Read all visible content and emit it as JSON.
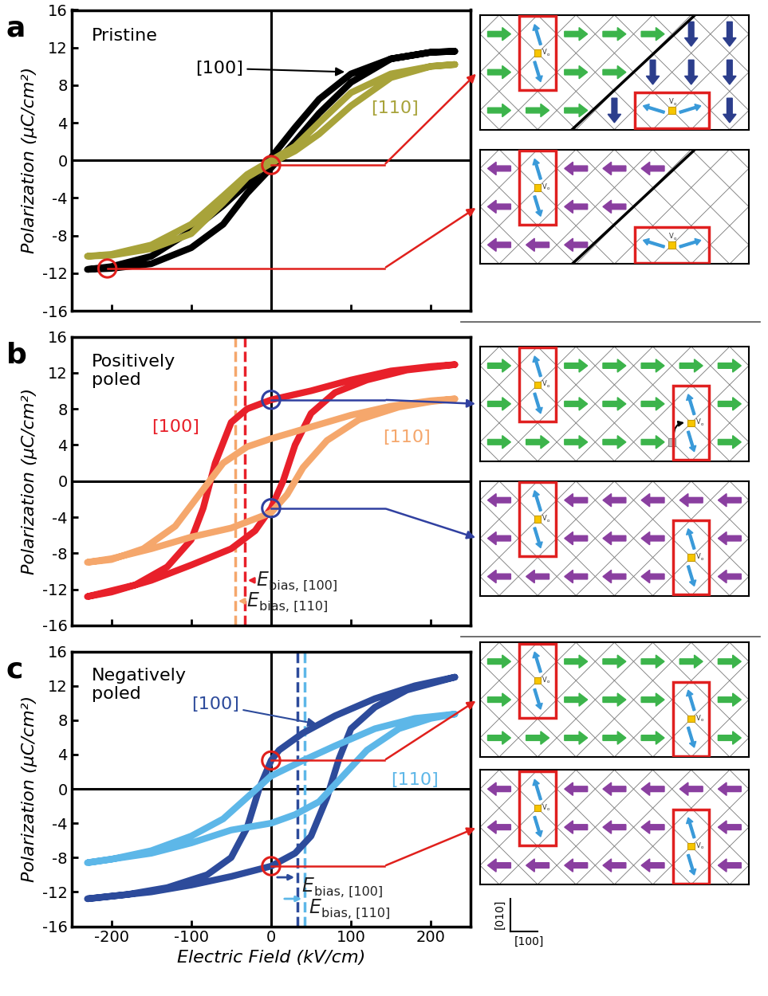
{
  "chart_data": [
    {
      "type": "line",
      "panel": "a",
      "annotation": "Pristine",
      "ylabel": "Polarization (μC/cm²)",
      "xlim": [
        -250,
        250
      ],
      "ylim": [
        -16,
        16
      ],
      "xticks": [
        -200,
        -100,
        0,
        100,
        200
      ],
      "yticks": [
        -16,
        -12,
        -8,
        -4,
        0,
        4,
        8,
        12,
        16
      ],
      "tick_labels": "y",
      "series": [
        {
          "name": "[100]",
          "color": "#000000",
          "x": [
            230,
            200,
            150,
            100,
            60,
            30,
            0,
            -30,
            -60,
            -100,
            -150,
            -200,
            -230,
            -230,
            -200,
            -150,
            -100,
            -60,
            -30,
            0,
            30,
            60,
            100,
            150,
            200,
            230
          ],
          "values": [
            11.6,
            11.5,
            10.8,
            9.2,
            6.5,
            3.5,
            0.3,
            -2.5,
            -4.8,
            -7.5,
            -10.2,
            -11.3,
            -11.6,
            -11.6,
            -11.5,
            -11.0,
            -9.3,
            -6.8,
            -3.5,
            -0.8,
            2.0,
            5.0,
            8.3,
            10.8,
            11.5,
            11.6
          ]
        },
        {
          "name": "[110]",
          "color": "#a8a33a",
          "x": [
            230,
            200,
            150,
            100,
            60,
            30,
            0,
            -30,
            -60,
            -100,
            -150,
            -200,
            -230,
            -230,
            -200,
            -150,
            -100,
            -60,
            -30,
            0,
            30,
            60,
            100,
            150,
            200,
            230
          ],
          "values": [
            10.2,
            10.0,
            9.2,
            7.2,
            4.0,
            1.5,
            0,
            -1.5,
            -3.8,
            -6.8,
            -9.0,
            -10.0,
            -10.2,
            -10.2,
            -10.1,
            -9.4,
            -7.8,
            -4.5,
            -1.8,
            -0.3,
            1.0,
            2.8,
            5.8,
            8.8,
            10.0,
            10.2
          ]
        }
      ],
      "markers": [
        {
          "x": 0,
          "y": -0.5,
          "color": "#e0201c"
        },
        {
          "x": -205,
          "y": -11.5,
          "color": "#e0201c"
        }
      ],
      "bias_lines": []
    },
    {
      "type": "line",
      "panel": "b",
      "annotation": "Positively\npoled",
      "ylabel": "Polarization (μC/cm²)",
      "xlim": [
        -250,
        250
      ],
      "ylim": [
        -16,
        16
      ],
      "xticks": [
        -200,
        -100,
        0,
        100,
        200
      ],
      "yticks": [
        -16,
        -12,
        -8,
        -4,
        0,
        4,
        8,
        12,
        16
      ],
      "tick_labels": "y",
      "series": [
        {
          "name": "[100]",
          "color": "#e8202a",
          "x": [
            230,
            200,
            150,
            100,
            50,
            0,
            -30,
            -50,
            -70,
            -85,
            -100,
            -130,
            -170,
            -230,
            -230,
            -200,
            -150,
            -100,
            -50,
            -20,
            0,
            15,
            30,
            50,
            80,
            120,
            170,
            230
          ],
          "values": [
            12.9,
            12.7,
            12.2,
            11.2,
            10.0,
            9.0,
            8.0,
            6.5,
            2.0,
            -3.0,
            -6.5,
            -9.5,
            -11.5,
            -12.8,
            -12.8,
            -12.3,
            -11.0,
            -9.3,
            -7.5,
            -5.5,
            -3.0,
            0,
            4.0,
            7.5,
            9.8,
            11.2,
            12.3,
            12.9
          ]
        },
        {
          "name": "[110]",
          "color": "#f5a76c",
          "x": [
            230,
            200,
            150,
            100,
            50,
            0,
            -30,
            -60,
            -90,
            -120,
            -160,
            -200,
            -230,
            -230,
            -200,
            -150,
            -100,
            -50,
            0,
            20,
            40,
            70,
            110,
            160,
            200,
            230
          ],
          "values": [
            9.1,
            8.9,
            8.3,
            7.3,
            6.0,
            4.7,
            3.8,
            2.0,
            -1.5,
            -5.0,
            -7.5,
            -8.7,
            -9.0,
            -9.0,
            -8.6,
            -7.5,
            -6.2,
            -5.2,
            -3.5,
            -1.5,
            1.5,
            4.5,
            6.8,
            8.2,
            8.8,
            9.1
          ]
        }
      ],
      "markers": [
        {
          "x": 0,
          "y": 9.0,
          "color": "#3040a0"
        },
        {
          "x": 0,
          "y": -3.0,
          "color": "#3040a0"
        }
      ],
      "bias_lines": [
        {
          "symbol": "E",
          "subscript": "bias, [100]",
          "value": -33,
          "color": "#e8202a"
        },
        {
          "symbol": "E",
          "subscript": "bias, [110]",
          "value": -45,
          "color": "#f5a76c"
        }
      ]
    },
    {
      "type": "line",
      "panel": "c",
      "annotation": "Negatively\npoled",
      "ylabel": "Polarization (μC/cm²)",
      "xlabel": "Electric Field (kV/cm)",
      "xlim": [
        -250,
        250
      ],
      "ylim": [
        -16,
        16
      ],
      "xticks": [
        -200,
        -100,
        0,
        100,
        200
      ],
      "yticks": [
        -16,
        -12,
        -8,
        -4,
        0,
        4,
        8,
        12,
        16
      ],
      "series": [
        {
          "name": "[100]",
          "color": "#2d4b9b",
          "x": [
            230,
            180,
            130,
            80,
            40,
            10,
            0,
            -15,
            -30,
            -50,
            -80,
            -130,
            -180,
            -230,
            -230,
            -150,
            -100,
            -50,
            0,
            30,
            50,
            70,
            85,
            100,
            130,
            170,
            230
          ],
          "values": [
            13.0,
            12.0,
            10.5,
            8.5,
            6.5,
            4.5,
            3.3,
            0,
            -4.5,
            -8.0,
            -10.0,
            -11.5,
            -12.3,
            -12.8,
            -12.8,
            -12.0,
            -11.2,
            -10.2,
            -9.0,
            -7.5,
            -5.5,
            -1.0,
            3.5,
            7.0,
            9.5,
            11.5,
            13.0
          ]
        },
        {
          "name": "[110]",
          "color": "#5db7e8",
          "x": [
            230,
            180,
            130,
            80,
            40,
            0,
            -30,
            -60,
            -100,
            -150,
            -200,
            -230,
            -230,
            -150,
            -100,
            -50,
            0,
            30,
            60,
            90,
            120,
            160,
            200,
            230
          ],
          "values": [
            8.7,
            8.2,
            7.0,
            5.0,
            3.3,
            1.5,
            -1.0,
            -3.5,
            -5.5,
            -7.2,
            -8.2,
            -8.6,
            -8.6,
            -7.5,
            -6.3,
            -4.8,
            -4.0,
            -3.0,
            -1.5,
            1.5,
            4.5,
            7.0,
            8.2,
            8.7
          ]
        }
      ],
      "markers": [
        {
          "x": 0,
          "y": 3.3,
          "color": "#e0201c"
        },
        {
          "x": 0,
          "y": -9.0,
          "color": "#e0201c"
        }
      ],
      "bias_lines": [
        {
          "symbol": "E",
          "subscript": "bias, [100]",
          "value": 33,
          "color": "#2d4b9b"
        },
        {
          "symbol": "E",
          "subscript": "bias, [110]",
          "value": 42,
          "color": "#5db7e8"
        }
      ]
    }
  ],
  "diagram": {
    "defect_label": {
      "symbol": "V",
      "subscript": "o"
    },
    "axis_labels": {
      "vertical": "[010]",
      "horizontal": "[100]"
    }
  }
}
